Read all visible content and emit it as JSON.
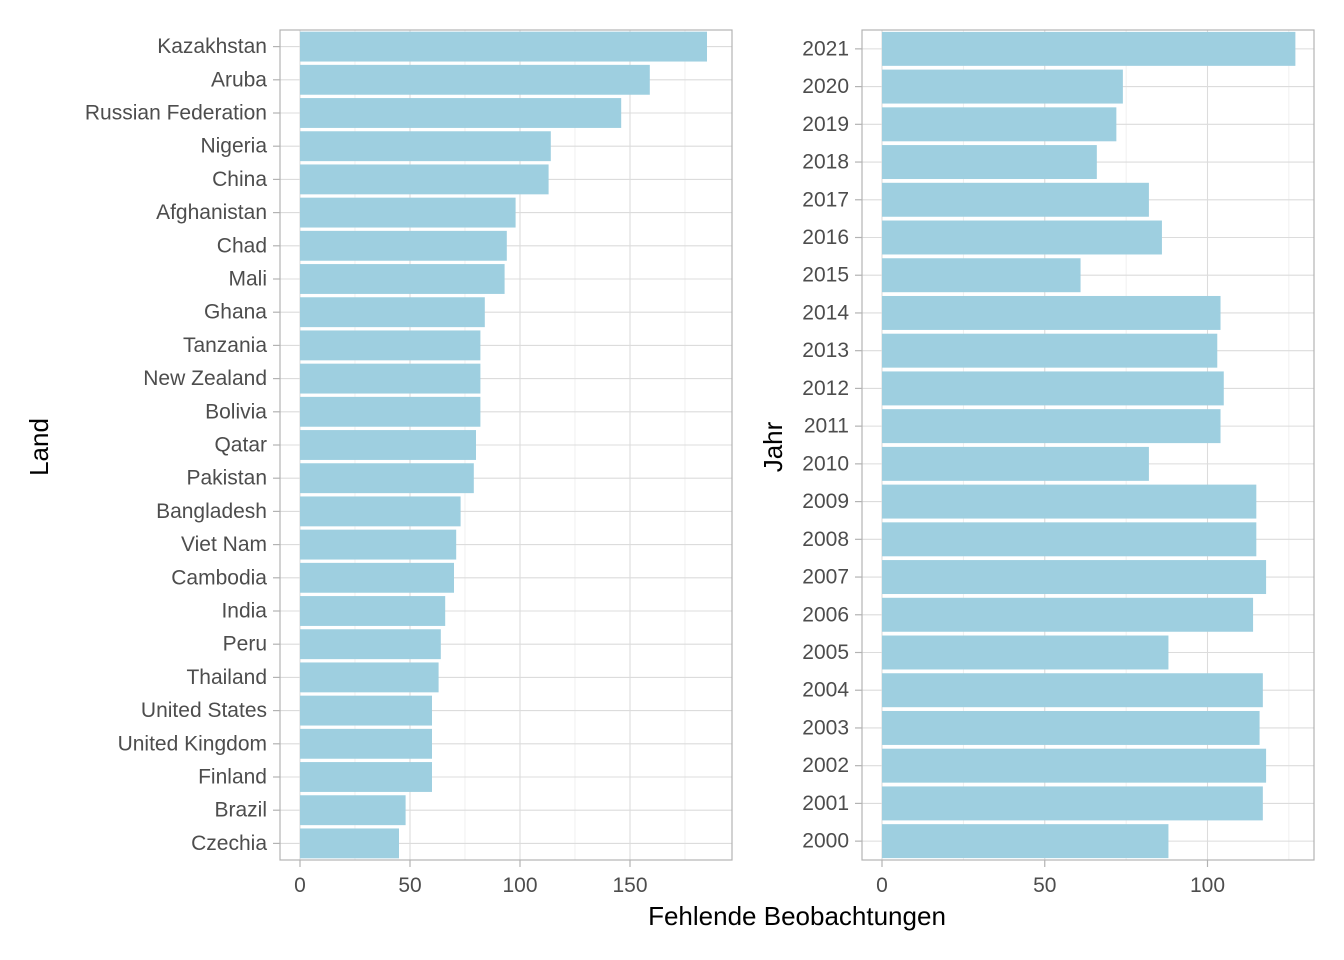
{
  "chart_data": {
    "xlabel": "Fehlende Beobachtungen",
    "bar_color": "#9ecfe0",
    "panels": [
      {
        "type": "bar",
        "orientation": "horizontal",
        "ylabel": "Land",
        "xlim": [
          0,
          190
        ],
        "xticks": [
          0,
          50,
          100,
          150
        ],
        "grid": true,
        "categories": [
          "Kazakhstan",
          "Aruba",
          "Russian Federation",
          "Nigeria",
          "China",
          "Afghanistan",
          "Chad",
          "Mali",
          "Ghana",
          "Tanzania",
          "New Zealand",
          "Bolivia",
          "Qatar",
          "Pakistan",
          "Bangladesh",
          "Viet Nam",
          "Cambodia",
          "India",
          "Peru",
          "Thailand",
          "United States",
          "United Kingdom",
          "Finland",
          "Brazil",
          "Czechia"
        ],
        "values": [
          185,
          159,
          146,
          114,
          113,
          98,
          94,
          93,
          84,
          82,
          82,
          82,
          80,
          79,
          73,
          71,
          70,
          66,
          64,
          63,
          60,
          60,
          60,
          48,
          45
        ]
      },
      {
        "type": "bar",
        "orientation": "horizontal",
        "ylabel": "Jahr",
        "xlim": [
          0,
          130
        ],
        "xticks": [
          0,
          50,
          100
        ],
        "grid": true,
        "categories": [
          "2021",
          "2020",
          "2019",
          "2018",
          "2017",
          "2016",
          "2015",
          "2014",
          "2013",
          "2012",
          "2011",
          "2010",
          "2009",
          "2008",
          "2007",
          "2006",
          "2005",
          "2004",
          "2003",
          "2002",
          "2001",
          "2000"
        ],
        "values": [
          127,
          74,
          72,
          66,
          82,
          86,
          61,
          104,
          103,
          105,
          104,
          82,
          115,
          115,
          118,
          114,
          88,
          117,
          116,
          118,
          117,
          88
        ]
      }
    ]
  }
}
